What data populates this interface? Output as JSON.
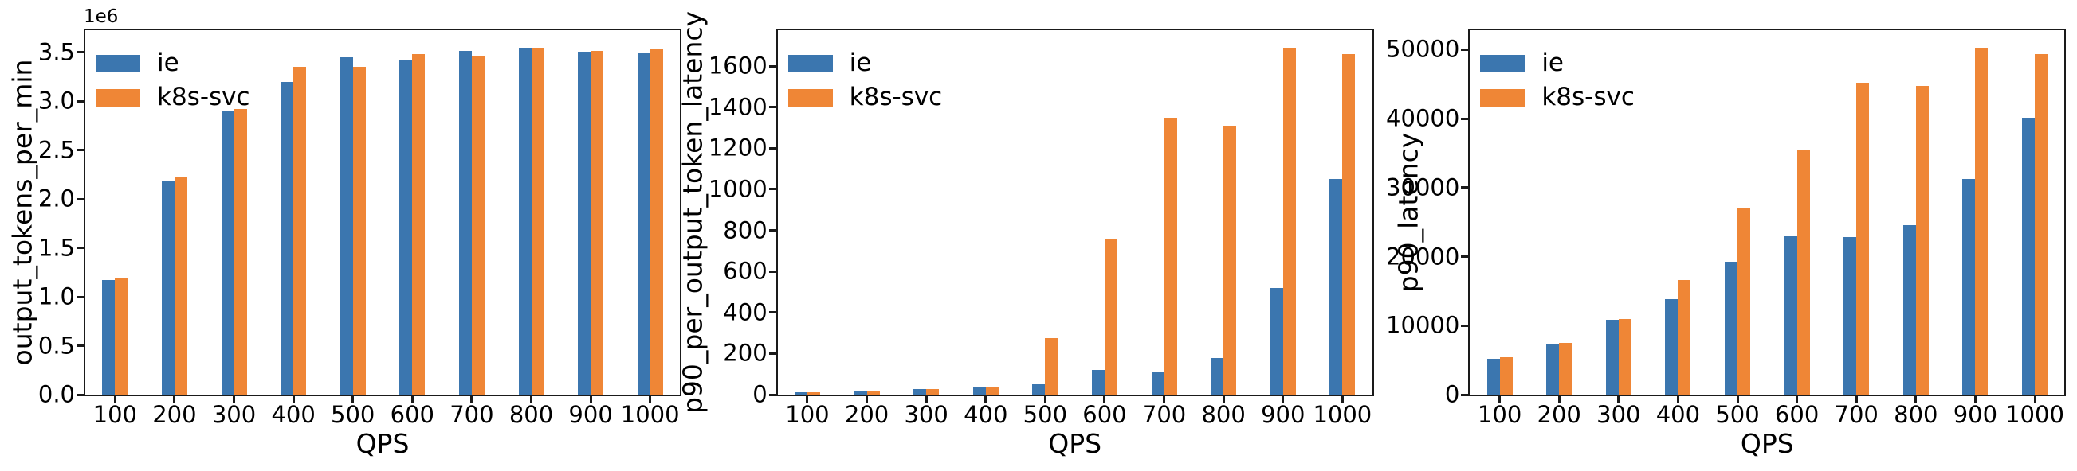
{
  "colors": {
    "series_ie": "#3B76AF",
    "series_k8s_svc": "#EF8636",
    "axis": "#1A1A1A",
    "background": "#FFFFFF"
  },
  "chart_data": [
    {
      "type": "bar",
      "title": "",
      "ylabel": "output_tokens_per_min",
      "xlabel": "QPS",
      "y_offset_text": "1e6",
      "categories": [
        "100",
        "200",
        "300",
        "400",
        "500",
        "600",
        "700",
        "800",
        "900",
        "1000"
      ],
      "series": [
        {
          "name": "ie",
          "color": "#3B76AF",
          "values": [
            1170000,
            2180000,
            2905000,
            3200000,
            3450000,
            3430000,
            3515000,
            3545000,
            3505000,
            3500000
          ]
        },
        {
          "name": "k8s-svc",
          "color": "#EF8636",
          "values": [
            1190000,
            2225000,
            2920000,
            3350000,
            3350000,
            3480000,
            3465000,
            3550000,
            3520000,
            3535000
          ]
        }
      ],
      "ylim": [
        0,
        3727500
      ],
      "yticks": {
        "values": [
          0,
          500000,
          1000000,
          1500000,
          2000000,
          2500000,
          3000000,
          3500000
        ],
        "labels": [
          "0.0",
          "0.5",
          "1.0",
          "1.5",
          "2.0",
          "2.5",
          "3.0",
          "3.5"
        ]
      },
      "legend": {
        "position": "upper left",
        "entries": [
          "ie",
          "k8s-svc"
        ]
      },
      "grid": false
    },
    {
      "type": "bar",
      "title": "",
      "ylabel": "p90_per_output_token_latency",
      "xlabel": "QPS",
      "y_offset_text": "",
      "categories": [
        "100",
        "200",
        "300",
        "400",
        "500",
        "600",
        "700",
        "800",
        "900",
        "1000"
      ],
      "series": [
        {
          "name": "ie",
          "color": "#3B76AF",
          "values": [
            12,
            20,
            29,
            38,
            50,
            120,
            110,
            178,
            520,
            1050
          ]
        },
        {
          "name": "k8s-svc",
          "color": "#EF8636",
          "values": [
            10,
            18,
            28,
            40,
            275,
            760,
            1350,
            1310,
            1690,
            1660
          ]
        }
      ],
      "ylim": [
        0,
        1775
      ],
      "yticks": {
        "values": [
          0,
          200,
          400,
          600,
          800,
          1000,
          1200,
          1400,
          1600
        ],
        "labels": [
          "0",
          "200",
          "400",
          "600",
          "800",
          "1000",
          "1200",
          "1400",
          "1600"
        ]
      },
      "legend": {
        "position": "upper left",
        "entries": [
          "ie",
          "k8s-svc"
        ]
      },
      "grid": false
    },
    {
      "type": "bar",
      "title": "",
      "ylabel": "p90_latency",
      "xlabel": "QPS",
      "y_offset_text": "",
      "categories": [
        "100",
        "200",
        "300",
        "400",
        "500",
        "600",
        "700",
        "800",
        "900",
        "1000"
      ],
      "series": [
        {
          "name": "ie",
          "color": "#3B76AF",
          "values": [
            5200,
            7300,
            10800,
            13800,
            19200,
            23000,
            22800,
            24600,
            31300,
            40100
          ]
        },
        {
          "name": "k8s-svc",
          "color": "#EF8636",
          "values": [
            5400,
            7500,
            11000,
            16600,
            27100,
            35500,
            45200,
            44700,
            50300,
            49300
          ]
        }
      ],
      "ylim": [
        0,
        52800
      ],
      "yticks": {
        "values": [
          0,
          10000,
          20000,
          30000,
          40000,
          50000
        ],
        "labels": [
          "0",
          "10000",
          "20000",
          "30000",
          "40000",
          "50000"
        ]
      },
      "legend": {
        "position": "upper left",
        "entries": [
          "ie",
          "k8s-svc"
        ]
      },
      "grid": false
    }
  ]
}
